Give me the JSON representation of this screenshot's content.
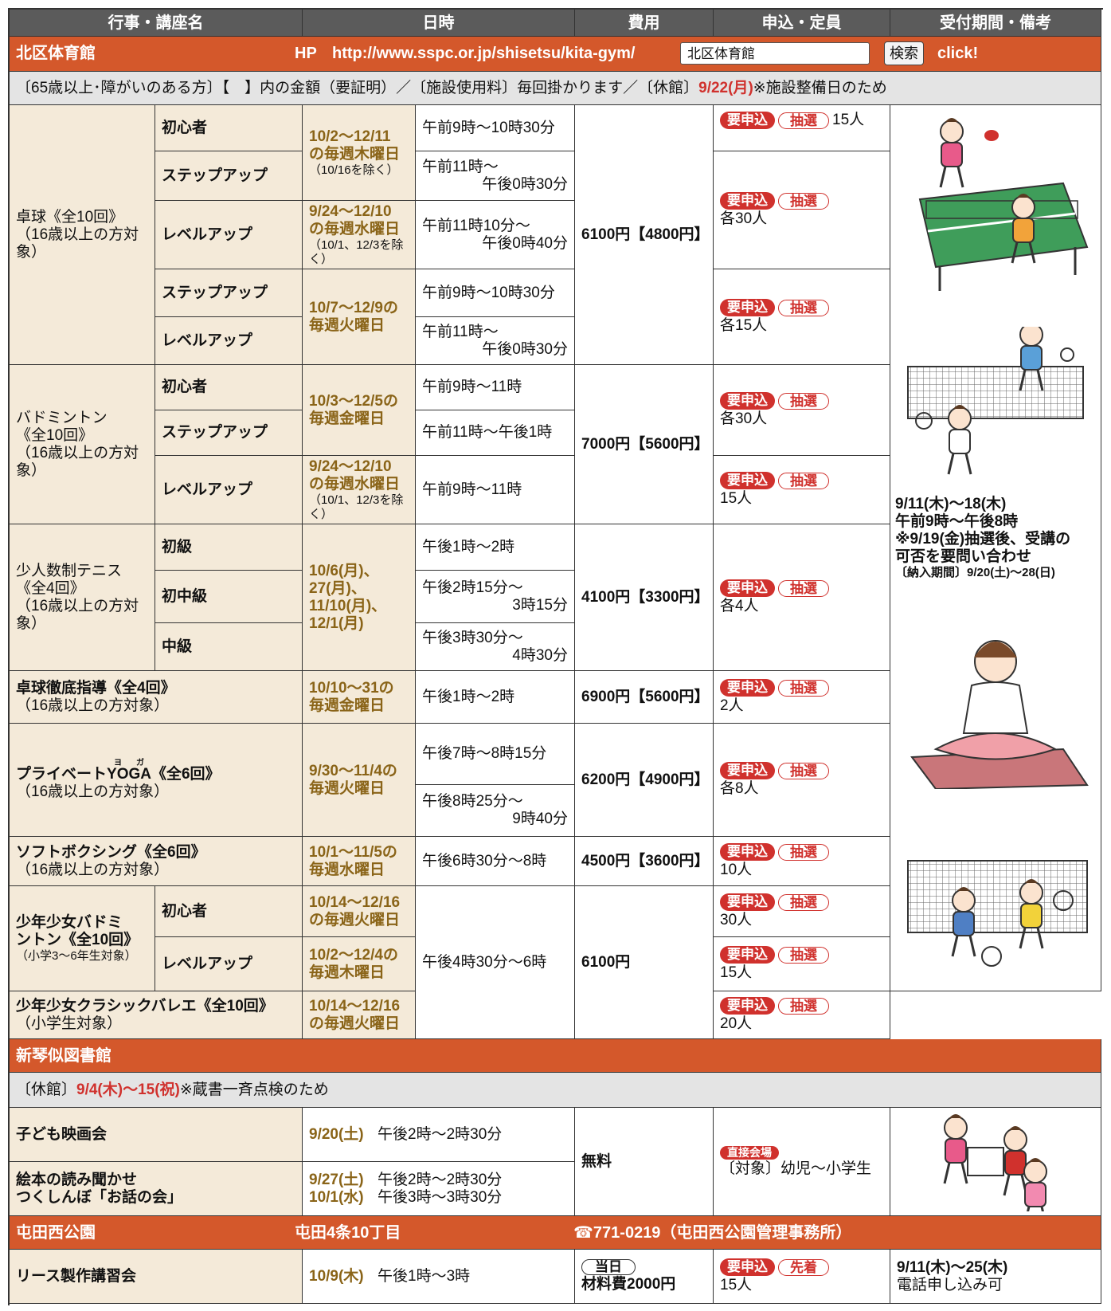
{
  "header": [
    "行事・講座名",
    "日時",
    "費用",
    "申込・定員",
    "受付期間・備考"
  ],
  "badges": {
    "apply": "要申込",
    "lottery": "抽選",
    "first": "先着",
    "direct": "直接会場",
    "today": "当日"
  },
  "kita": {
    "name": "北区体育館",
    "hp": "HP",
    "url": "http://www.sspc.or.jp/shisetsu/kita-gym/",
    "search_text": "北区体育館",
    "search_button": "検索",
    "click": "click!",
    "notice": [
      "〔65歳以上･障がいのある方〕【　】内の金額（要証明）／〔施設使用料〕毎回掛かります／〔休館〕",
      "9/22(月)",
      "※施設整備日のため"
    ],
    "courses": [
      {
        "name": [
          "卓球《全10回》",
          "（16歳以上の方対象）"
        ],
        "levels": [
          "初心者",
          "ステップアップ",
          "レベルアップ",
          "ステップアップ",
          "レベルアップ"
        ],
        "dates": [
          [
            "10/2～12/11",
            "の毎週木曜日",
            "（10/16を除く）"
          ],
          [
            "9/24～12/10",
            "の毎週水曜日",
            "（10/1、12/3を除く）"
          ],
          [
            "10/7～12/9の",
            "毎週火曜日"
          ]
        ],
        "times": [
          [
            "午前9時～10時30分"
          ],
          [
            "午前11時～",
            "午後0時30分"
          ],
          [
            "午前11時10分～",
            "午後0時40分"
          ],
          [
            "午前9時～10時30分"
          ],
          [
            "午前11時～",
            "午後0時30分"
          ]
        ],
        "fee": "6100円【4800円】",
        "capacity": [
          "15人",
          "各30人",
          "各15人"
        ]
      },
      {
        "name": [
          "バドミントン",
          "《全10回》",
          "（16歳以上の方対象）"
        ],
        "levels": [
          "初心者",
          "ステップアップ",
          "レベルアップ"
        ],
        "dates": [
          [
            "10/3～12/5の",
            "毎週金曜日"
          ],
          [
            "9/24～12/10",
            "の毎週水曜日",
            "（10/1、12/3を除く）"
          ]
        ],
        "times": [
          [
            "午前9時～11時"
          ],
          [
            "午前11時～午後1時"
          ],
          [
            "午前9時～11時"
          ]
        ],
        "fee": "7000円【5600円】",
        "capacity": [
          "各30人",
          "15人"
        ]
      },
      {
        "name": [
          "少人数制テニス",
          "《全4回》",
          "（16歳以上の方対象）"
        ],
        "levels": [
          "初級",
          "初中級",
          "中級"
        ],
        "dates": [
          [
            "10/6(月)、27(月)、",
            "11/10(月)、",
            "12/1(月)"
          ]
        ],
        "times": [
          [
            "午後1時～2時"
          ],
          [
            "午後2時15分～",
            "3時15分"
          ],
          [
            "午後3時30分～",
            "4時30分"
          ]
        ],
        "fee": "4100円【3300円】",
        "capacity": [
          "各4人"
        ]
      },
      {
        "name": [
          "卓球徹底指導《全4回》",
          "（16歳以上の方対象）"
        ],
        "dates": [
          [
            "10/10～31の",
            "毎週金曜日"
          ]
        ],
        "times": [
          [
            "午後1時～2時"
          ]
        ],
        "fee": "6900円【5600円】",
        "capacity": [
          "2人"
        ]
      },
      {
        "name": [
          "プライベート",
          "YOGA",
          "《全6回》",
          "（16歳以上の方対象）"
        ],
        "ruby": "ヨガ",
        "dates": [
          [
            "9/30～11/4の",
            "毎週火曜日"
          ]
        ],
        "times": [
          [
            "午後7時～8時15分"
          ],
          [
            "午後8時25分～",
            "9時40分"
          ]
        ],
        "fee": "6200円【4900円】",
        "capacity": [
          "各8人"
        ]
      },
      {
        "name": [
          "ソフトボクシング《全6回》",
          "（16歳以上の方対象）"
        ],
        "dates": [
          [
            "10/1～11/5の",
            "毎週水曜日"
          ]
        ],
        "times": [
          [
            "午後6時30分～8時"
          ]
        ],
        "fee": "4500円【3600円】",
        "capacity": [
          "10人"
        ]
      },
      {
        "name": [
          "少年少女バドミ",
          "ントン《全10回》",
          "（小学3～6年生対象）"
        ],
        "levels": [
          "初心者",
          "レベルアップ"
        ],
        "dates": [
          [
            "10/14～12/16",
            "の毎週火曜日"
          ],
          [
            "10/2～12/4の",
            "毎週木曜日"
          ]
        ],
        "times": [
          [
            "午後4時30分～6時"
          ]
        ],
        "fee": "6100円",
        "capacity": [
          "30人",
          "15人"
        ]
      },
      {
        "name": [
          "少年少女クラシックバレエ《全10回》",
          "（小学生対象）"
        ],
        "dates": [
          [
            "10/14～12/16",
            "の毎週火曜日"
          ]
        ],
        "capacity": [
          "20人"
        ]
      }
    ],
    "remarks": [
      "9/11(木)～18(木)",
      "午前9時～午後8時",
      "※9/19(金)抽選後、受講の",
      "可否を要問い合わせ",
      "〔納入期間〕9/20(土)～28(日)"
    ]
  },
  "shinkotoni": {
    "name": "新琴似図書館",
    "notice": [
      "〔休館〕",
      "9/4(木)～15(祝)",
      "※蔵書一斉点検のため"
    ],
    "events": [
      {
        "name": [
          "子ども映画会"
        ],
        "schedule": [
          [
            "9/20(土)",
            "午後2時～2時30分"
          ]
        ]
      },
      {
        "name": [
          "絵本の読み聞かせ",
          "つくしんぼ「お話の会」"
        ],
        "schedule": [
          [
            "9/27(土)",
            "午後2時～2時30分"
          ],
          [
            "10/1(水)",
            "午後3時～3時30分"
          ]
        ]
      }
    ],
    "fee": "無料",
    "target": "〔対象〕幼児～小学生"
  },
  "tonden": {
    "name": "屯田西公園",
    "address": "屯田4条10丁目",
    "phone": "☎771-0219（屯田西公園管理事務所）",
    "event": {
      "name": "リース製作講習会",
      "schedule": [
        "10/9(木)",
        "午後1時～3時"
      ],
      "fee": "材料費2000円",
      "capacity": "15人",
      "remarks": [
        "9/11(木)～25(木)",
        "電話申し込み可"
      ]
    }
  }
}
